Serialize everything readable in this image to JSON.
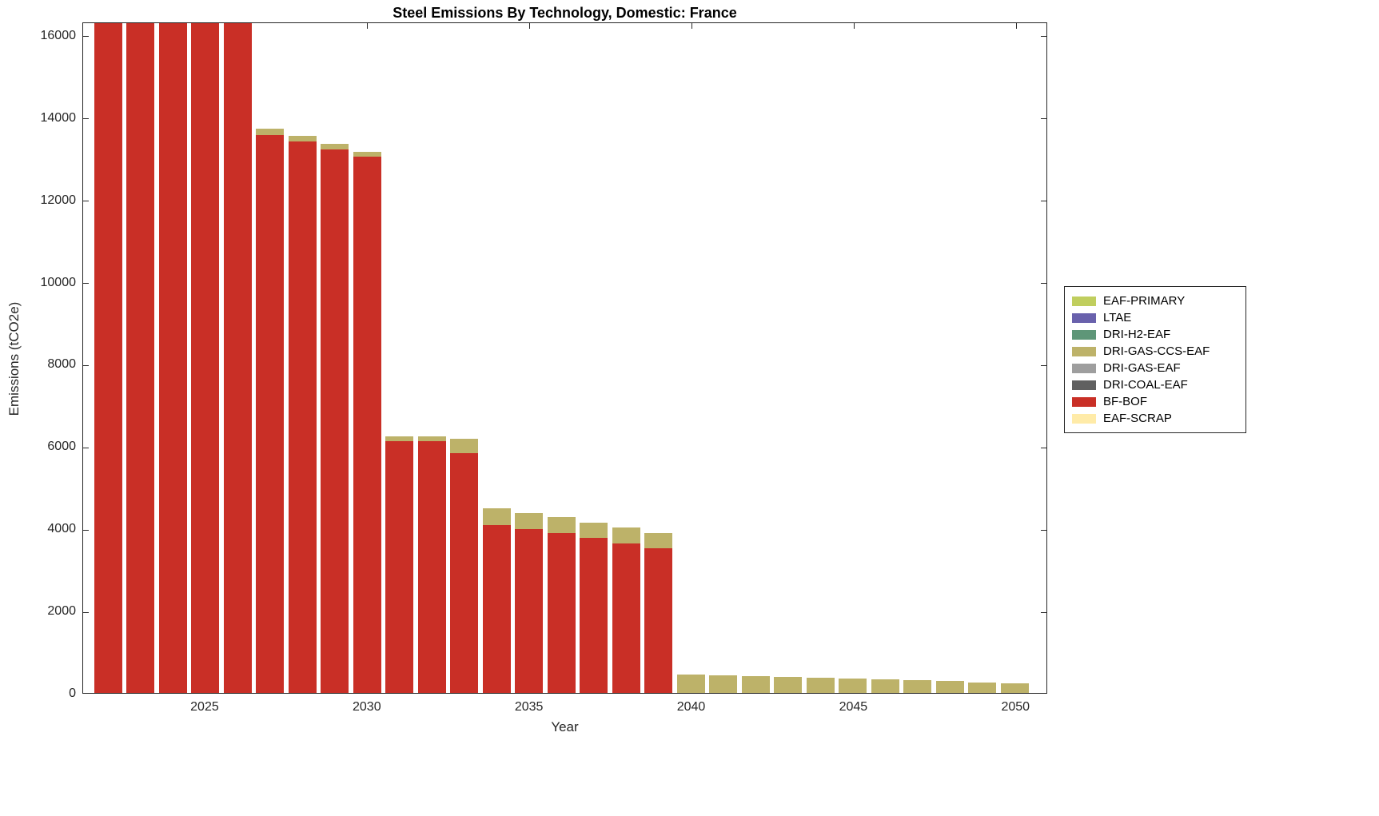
{
  "chart_data": {
    "type": "bar",
    "stacked": true,
    "title": "Steel Emissions By Technology, Domestic: France",
    "xlabel": "Year",
    "ylabel": "Emissions (tCO2e)",
    "xlim": [
      2021.23,
      2050.98
    ],
    "ylim": [
      0,
      16330
    ],
    "bar_width": 0.86,
    "grid": false,
    "legend_position": "right-outside",
    "x": [
      2022,
      2023,
      2024,
      2025,
      2026,
      2027,
      2028,
      2029,
      2030,
      2031,
      2032,
      2033,
      2034,
      2035,
      2036,
      2037,
      2038,
      2039,
      2040,
      2041,
      2042,
      2043,
      2044,
      2045,
      2046,
      2047,
      2048,
      2049,
      2050
    ],
    "xticks": [
      2025,
      2030,
      2035,
      2040,
      2045,
      2050
    ],
    "yticks": [
      0,
      2000,
      4000,
      6000,
      8000,
      10000,
      12000,
      14000,
      16000
    ],
    "series": [
      {
        "name": "EAF-PRIMARY",
        "color": "#C0CE5E",
        "values": [
          0,
          0,
          0,
          0,
          0,
          0,
          0,
          0,
          0,
          0,
          0,
          0,
          0,
          0,
          0,
          0,
          0,
          0,
          0,
          0,
          0,
          0,
          0,
          0,
          0,
          0,
          0,
          0,
          0
        ]
      },
      {
        "name": "LTAE",
        "color": "#6961AC",
        "values": [
          0,
          0,
          0,
          0,
          0,
          0,
          0,
          0,
          0,
          0,
          0,
          0,
          0,
          0,
          0,
          0,
          0,
          0,
          0,
          0,
          0,
          0,
          0,
          0,
          0,
          0,
          0,
          0,
          0
        ]
      },
      {
        "name": "DRI-H2-EAF",
        "color": "#5E9678",
        "values": [
          0,
          0,
          0,
          0,
          0,
          0,
          0,
          0,
          0,
          0,
          0,
          0,
          0,
          0,
          0,
          0,
          0,
          0,
          0,
          0,
          0,
          0,
          0,
          0,
          0,
          0,
          0,
          0,
          0
        ]
      },
      {
        "name": "DRI-GAS-CCS-EAF",
        "color": "#BDB269",
        "values": [
          0,
          0,
          0,
          0,
          0,
          150,
          140,
          130,
          120,
          120,
          120,
          350,
          400,
          390,
          380,
          370,
          380,
          360,
          450,
          430,
          415,
          395,
          375,
          355,
          330,
          310,
          285,
          255,
          225
        ]
      },
      {
        "name": "DRI-GAS-EAF",
        "color": "#9E9E9E",
        "values": [
          0,
          0,
          0,
          0,
          0,
          0,
          0,
          0,
          0,
          0,
          0,
          0,
          0,
          0,
          0,
          0,
          0,
          0,
          0,
          0,
          0,
          0,
          0,
          0,
          0,
          0,
          0,
          0,
          0
        ]
      },
      {
        "name": "DRI-COAL-EAF",
        "color": "#606060",
        "values": [
          0,
          0,
          0,
          0,
          0,
          0,
          0,
          0,
          0,
          0,
          0,
          0,
          0,
          0,
          0,
          0,
          0,
          0,
          0,
          0,
          0,
          0,
          0,
          0,
          0,
          0,
          0,
          0,
          0
        ]
      },
      {
        "name": "BF-BOF",
        "color": "#C92F26",
        "values": [
          17000,
          17000,
          17000,
          17000,
          17000,
          13600,
          13450,
          13260,
          13080,
          6130,
          6130,
          5850,
          4100,
          4000,
          3900,
          3780,
          3650,
          3530,
          0,
          0,
          0,
          0,
          0,
          0,
          0,
          0,
          0,
          0,
          0
        ]
      },
      {
        "name": "EAF-SCRAP",
        "color": "#FFEBA8",
        "values": [
          0,
          0,
          0,
          0,
          0,
          0,
          0,
          0,
          0,
          0,
          0,
          0,
          0,
          0,
          0,
          0,
          0,
          0,
          0,
          0,
          0,
          0,
          0,
          0,
          0,
          0,
          0,
          0,
          0
        ]
      }
    ]
  }
}
